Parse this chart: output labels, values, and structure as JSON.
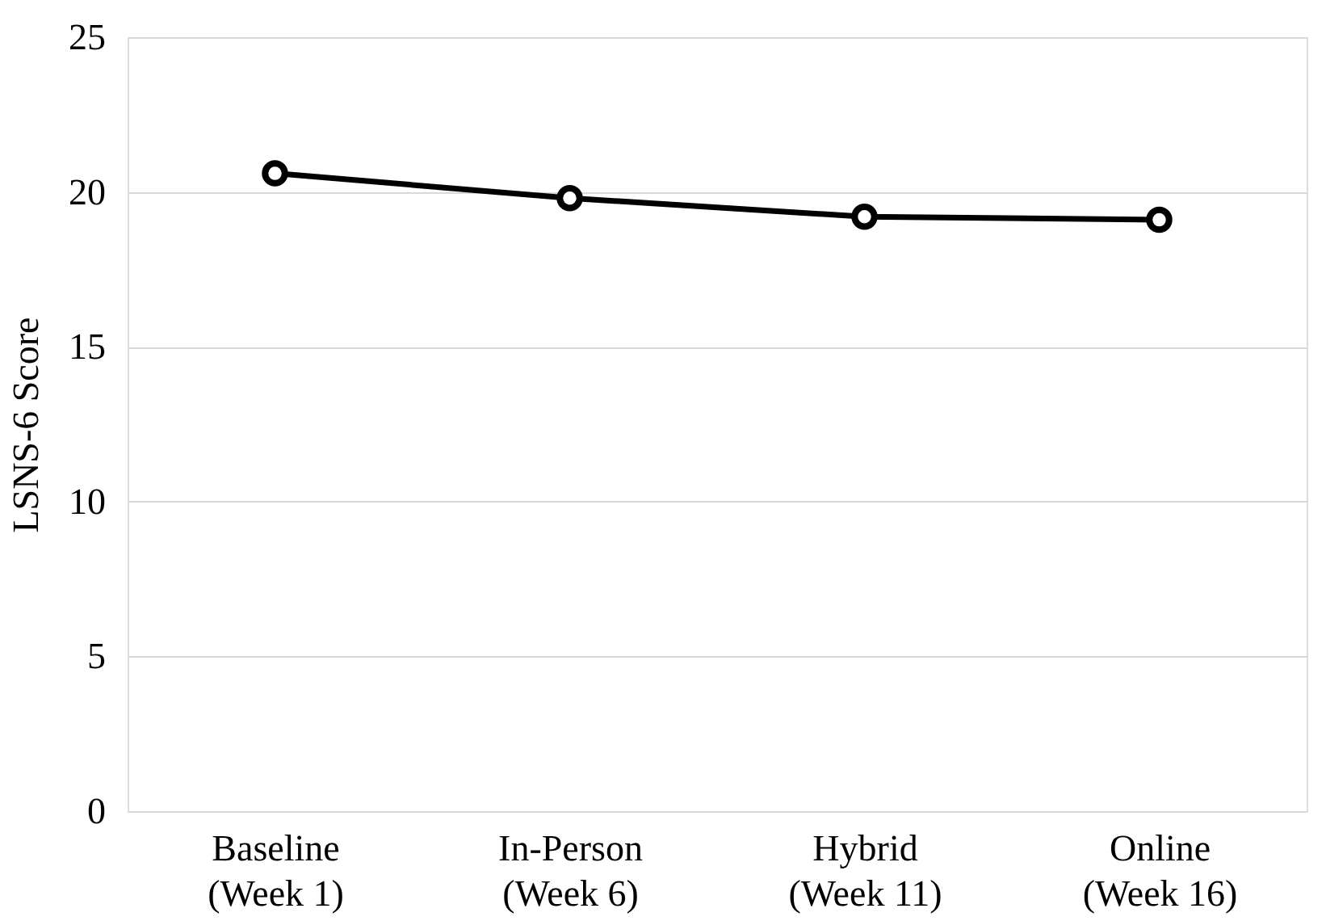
{
  "chart_data": {
    "type": "line",
    "ylabel": "LSNS-6 Score",
    "categories": [
      "Baseline\n(Week 1)",
      "In-Person\n(Week 6)",
      "Hybrid\n(Week 11)",
      "Online\n(Week 16)"
    ],
    "series": [
      {
        "color": "#000000",
        "values": [
          20.6,
          19.8,
          19.2,
          19.1
        ]
      }
    ],
    "ylim": [
      0,
      25
    ],
    "yticks": [
      0,
      5,
      10,
      15,
      20,
      25
    ],
    "grid": "y",
    "marker": "circle",
    "line_style": "solid"
  }
}
